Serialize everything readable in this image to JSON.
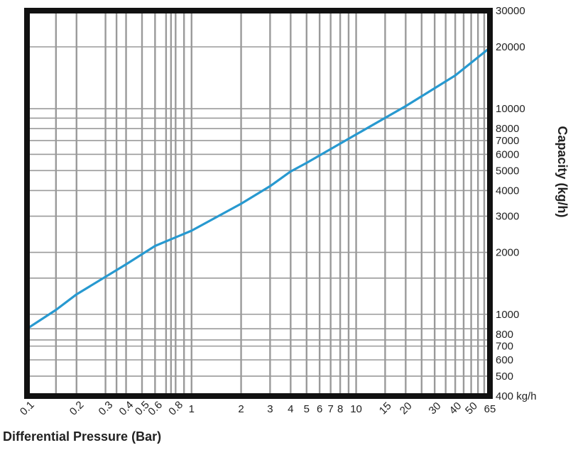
{
  "chart_data": {
    "type": "line",
    "title": "",
    "xlabel": "Differential Pressure (Bar)",
    "ylabel": "Capacity (kg/h)",
    "x_scale": "log",
    "y_scale": "log",
    "xlim": [
      0.1,
      65
    ],
    "ylim": [
      400,
      30000
    ],
    "grid": true,
    "legend": "none",
    "colors": {
      "frame": "#111111",
      "grid": "#9a9a9a",
      "series": "#2799d0"
    },
    "x_ticks": [
      {
        "value": 0.1,
        "label": "0.1"
      },
      {
        "value": 0.2,
        "label": "0.2"
      },
      {
        "value": 0.3,
        "label": "0.3"
      },
      {
        "value": 0.4,
        "label": "0.4"
      },
      {
        "value": 0.5,
        "label": "0.5"
      },
      {
        "value": 0.6,
        "label": "0.6"
      },
      {
        "value": 0.8,
        "label": "0.8"
      },
      {
        "value": 1,
        "label": "1"
      },
      {
        "value": 2,
        "label": "2"
      },
      {
        "value": 3,
        "label": "3"
      },
      {
        "value": 4,
        "label": "4"
      },
      {
        "value": 5,
        "label": "5"
      },
      {
        "value": 6,
        "label": "6"
      },
      {
        "value": 7,
        "label": "7"
      },
      {
        "value": 8,
        "label": "8"
      },
      {
        "value": 10,
        "label": "10"
      },
      {
        "value": 15,
        "label": "15"
      },
      {
        "value": 20,
        "label": "20"
      },
      {
        "value": 30,
        "label": "30"
      },
      {
        "value": 40,
        "label": "40"
      },
      {
        "value": 50,
        "label": "50"
      },
      {
        "value": 65,
        "label": "65"
      }
    ],
    "x_grid": [
      0.15,
      0.2,
      0.3,
      0.35,
      0.4,
      0.5,
      0.6,
      0.7,
      0.75,
      0.8,
      0.9,
      1,
      2,
      3,
      4,
      5,
      6,
      7,
      8,
      9,
      10,
      15,
      20,
      25,
      30,
      35,
      40,
      45,
      50,
      55,
      60
    ],
    "y_ticks": [
      {
        "value": 30000,
        "label": "30000"
      },
      {
        "value": 20000,
        "label": "20000"
      },
      {
        "value": 10000,
        "label": "10000"
      },
      {
        "value": 8000,
        "label": "8000"
      },
      {
        "value": 7000,
        "label": "7000"
      },
      {
        "value": 6000,
        "label": "6000"
      },
      {
        "value": 5000,
        "label": "5000"
      },
      {
        "value": 4000,
        "label": "4000"
      },
      {
        "value": 3000,
        "label": "3000"
      },
      {
        "value": 2000,
        "label": "2000"
      },
      {
        "value": 1000,
        "label": "1000"
      },
      {
        "value": 800,
        "label": "800"
      },
      {
        "value": 700,
        "label": "700"
      },
      {
        "value": 600,
        "label": "600"
      },
      {
        "value": 500,
        "label": "500"
      },
      {
        "value": 400,
        "label": "400 kg/h"
      }
    ],
    "y_grid": [
      20000,
      10000,
      9000,
      8000,
      7000,
      6000,
      5000,
      4000,
      3000,
      2000,
      1500,
      1000,
      850,
      750,
      700,
      600,
      500
    ],
    "series": [
      {
        "x": [
          0.1,
          0.15,
          0.2,
          0.4,
          0.6,
          1,
          2,
          3,
          4,
          5,
          10,
          20,
          40,
          65
        ],
        "y": [
          850,
          1050,
          1250,
          1750,
          2150,
          2550,
          3450,
          4200,
          4950,
          5450,
          7500,
          10300,
          14500,
          19800
        ]
      }
    ]
  }
}
